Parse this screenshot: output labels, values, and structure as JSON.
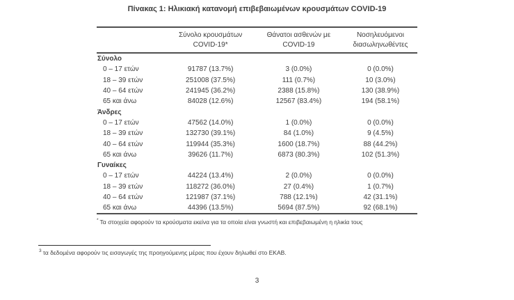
{
  "colors": {
    "text": "#3d3d3d",
    "border": "#4f4f4f"
  },
  "title": "Πίνακας 1: Ηλικιακή κατανομή επιβεβαιωμένων κρουσμάτων COVID-19",
  "table": {
    "col_headers": [
      {
        "line1": "Σύνολο κρουσμάτων",
        "line2": "COVID-19*"
      },
      {
        "line1": "Θάνατοι ασθενών με",
        "line2": "COVID-19"
      },
      {
        "line1": "Νοσηλευόμενοι",
        "line2": "διασωληνωθέντες"
      }
    ],
    "sections": [
      {
        "label": "Σύνολο",
        "rows": [
          {
            "label": "0 – 17 ετών",
            "cases": "91787 (13.7%)",
            "deaths": "3 (0.0%)",
            "intubated": "0 (0.0%)"
          },
          {
            "label": "18 – 39 ετών",
            "cases": "251008 (37.5%)",
            "deaths": "111 (0.7%)",
            "intubated": "10 (3.0%)"
          },
          {
            "label": "40 – 64 ετών",
            "cases": "241945 (36.2%)",
            "deaths": "2388 (15.8%)",
            "intubated": "130 (38.9%)"
          },
          {
            "label": "65 και άνω",
            "cases": "84028 (12.6%)",
            "deaths": "12567 (83.4%)",
            "intubated": "194 (58.1%)"
          }
        ]
      },
      {
        "label": "Άνδρες",
        "rows": [
          {
            "label": "0 – 17 ετών",
            "cases": "47562 (14.0%)",
            "deaths": "1 (0.0%)",
            "intubated": "0 (0.0%)"
          },
          {
            "label": "18 – 39 ετών",
            "cases": "132730 (39.1%)",
            "deaths": "84 (1.0%)",
            "intubated": "9 (4.5%)"
          },
          {
            "label": "40 – 64 ετών",
            "cases": "119944 (35.3%)",
            "deaths": "1600 (18.7%)",
            "intubated": "88 (44.2%)"
          },
          {
            "label": "65 και άνω",
            "cases": "39626 (11.7%)",
            "deaths": "6873 (80.3%)",
            "intubated": "102 (51.3%)"
          }
        ]
      },
      {
        "label": "Γυναίκες",
        "rows": [
          {
            "label": "0 – 17 ετών",
            "cases": "44224 (13.4%)",
            "deaths": "2 (0.0%)",
            "intubated": "0 (0.0%)"
          },
          {
            "label": "18 – 39 ετών",
            "cases": "118272 (36.0%)",
            "deaths": "27 (0.4%)",
            "intubated": "1 (0.7%)"
          },
          {
            "label": "40 – 64 ετών",
            "cases": "121987 (37.1%)",
            "deaths": "788 (12.1%)",
            "intubated": "42 (31.1%)"
          },
          {
            "label": "65 και άνω",
            "cases": "44396 (13.5%)",
            "deaths": "5694 (87.5%)",
            "intubated": "92 (68.1%)"
          }
        ]
      }
    ]
  },
  "table_footnote": {
    "marker": "*",
    "text": "Τα στοιχεία αφορούν τα κρούσματα εκείνα για τα οποία είναι γνωστή και επιβεβαιωμένη η ηλικία τους"
  },
  "page_footnote": {
    "marker": "3",
    "text": "τα δεδομένα αφορούν τις εισαγωγές της προηγούμενης μέρας που έχουν δηλωθεί στο ΕΚΑΒ."
  },
  "page_number": "3"
}
